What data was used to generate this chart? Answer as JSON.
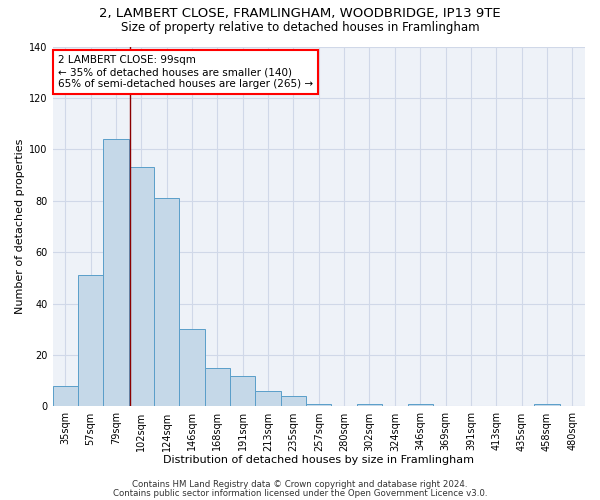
{
  "title1": "2, LAMBERT CLOSE, FRAMLINGHAM, WOODBRIDGE, IP13 9TE",
  "title2": "Size of property relative to detached houses in Framlingham",
  "xlabel": "Distribution of detached houses by size in Framlingham",
  "ylabel": "Number of detached properties",
  "categories": [
    "35sqm",
    "57sqm",
    "79sqm",
    "102sqm",
    "124sqm",
    "146sqm",
    "168sqm",
    "191sqm",
    "213sqm",
    "235sqm",
    "257sqm",
    "280sqm",
    "302sqm",
    "324sqm",
    "346sqm",
    "369sqm",
    "391sqm",
    "413sqm",
    "435sqm",
    "458sqm",
    "480sqm"
  ],
  "values": [
    8,
    51,
    104,
    93,
    81,
    30,
    15,
    12,
    6,
    4,
    1,
    0,
    1,
    0,
    1,
    0,
    0,
    0,
    0,
    1,
    0
  ],
  "bar_color": "#c5d8e8",
  "bar_edge_color": "#5a9ec9",
  "grid_color": "#d0d8e8",
  "red_line_x": 2.55,
  "annotation_text": "2 LAMBERT CLOSE: 99sqm\n← 35% of detached houses are smaller (140)\n65% of semi-detached houses are larger (265) →",
  "footer1": "Contains HM Land Registry data © Crown copyright and database right 2024.",
  "footer2": "Contains public sector information licensed under the Open Government Licence v3.0.",
  "ylim": [
    0,
    140
  ],
  "title1_fontsize": 9.5,
  "title2_fontsize": 8.5,
  "xlabel_fontsize": 8,
  "ylabel_fontsize": 8,
  "tick_fontsize": 7,
  "annotation_fontsize": 7.5,
  "footer_fontsize": 6.2,
  "bg_color": "#eef2f8"
}
